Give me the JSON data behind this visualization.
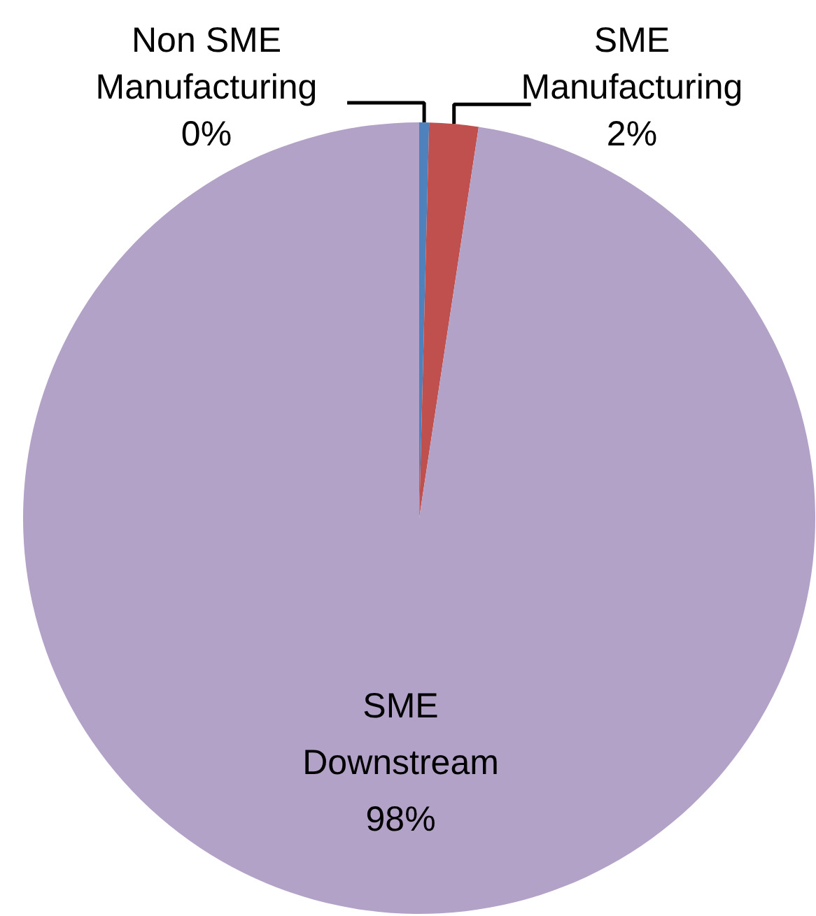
{
  "chart_data": {
    "type": "pie",
    "categories": [
      "Non SME Manufacturing",
      "SME Manufacturing",
      "SME Downstream"
    ],
    "values": [
      0.4,
      2,
      97.6
    ],
    "value_labels": [
      "0%",
      "2%",
      "98%"
    ],
    "colors": [
      "#4f81bd",
      "#c0504d",
      "#b3a2c7"
    ]
  }
}
